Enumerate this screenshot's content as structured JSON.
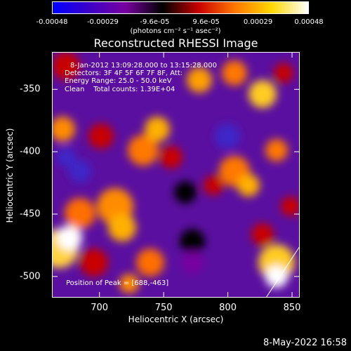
{
  "chart_data": {
    "type": "heatmap",
    "title": "Reconstructed RHESSI Image",
    "xlabel": "Heliocentric X (arcsec)",
    "ylabel": "Heliocentric Y (arcsec)",
    "xlim": [
      663,
      856
    ],
    "ylim": [
      -517,
      -320
    ],
    "x_ticks": [
      "700",
      "750",
      "800",
      "850"
    ],
    "x_tick_values": [
      700,
      750,
      800,
      850
    ],
    "y_ticks": [
      "-350",
      "-400",
      "-450",
      "-500"
    ],
    "y_tick_values": [
      -350,
      -400,
      -450,
      -500
    ],
    "colorbar": {
      "ticks": [
        "-0.00048",
        "-0.00029",
        "-9.6e-05",
        "9.6e-05",
        "0.00029",
        "0.00048"
      ],
      "tick_values": [
        -0.00048,
        -0.00029,
        -9.6e-05,
        9.6e-05,
        0.00029,
        0.00048
      ],
      "units": "(photons cm⁻² s⁻¹ asec⁻²)",
      "colors": [
        "#0000ff",
        "#3c00c8",
        "#7800a0",
        "#000000",
        "#c80000",
        "#ff7800",
        "#ffd800",
        "#ffffff"
      ]
    },
    "annotations": [
      "8-Jan-2012 13:09:28.000 to 13:15:28.000",
      "Detectors: 3F 4F 5F 6F 7F 8F, Att:",
      "Energy Range: 25.0 - 50.0 keV",
      "Clean    Total counts: 1.39E+04"
    ],
    "peak_label": "Position of Peak = [688,-463]",
    "peak_position": [
      688,
      -463
    ]
  },
  "footer": {
    "timestamp": "8-May-2022 16:58"
  }
}
